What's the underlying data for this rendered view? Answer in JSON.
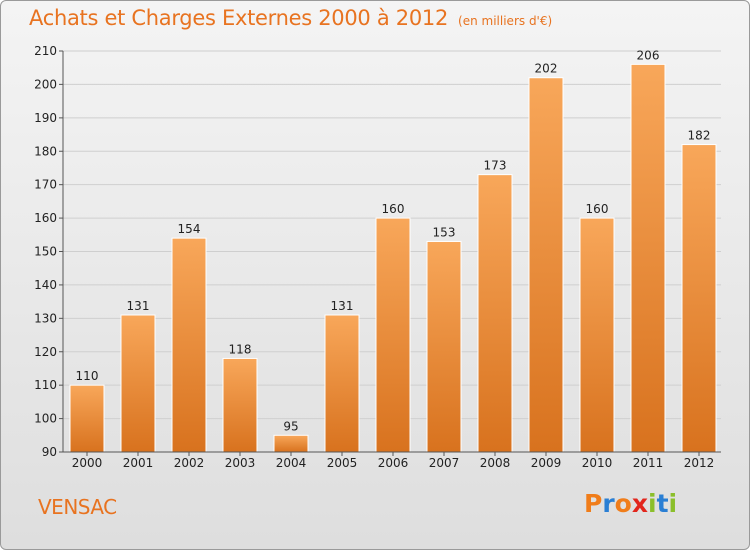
{
  "header": {
    "title": "Achats et Charges Externes 2000 à 2012",
    "subtitle": "(en milliers d'€)"
  },
  "footer": {
    "commune": "VENSAC",
    "logo_text": "Proxiti",
    "logo_letter_colors": [
      "#f07d1a",
      "#2a7fd4",
      "#f07d1a",
      "#e2261d",
      "#8bbf2b",
      "#2a7fd4",
      "#8bbf2b"
    ]
  },
  "colors": {
    "title": "#e87320",
    "bar_top": "#f8a75a",
    "bar_bottom": "#d8721e",
    "axis": "#555555"
  },
  "chart_data": {
    "type": "bar",
    "categories": [
      "2000",
      "2001",
      "2002",
      "2003",
      "2004",
      "2005",
      "2006",
      "2007",
      "2008",
      "2009",
      "2010",
      "2011",
      "2012"
    ],
    "values": [
      110,
      131,
      154,
      118,
      95,
      131,
      160,
      153,
      173,
      202,
      160,
      206,
      182
    ],
    "ylim": [
      90,
      210
    ],
    "yticks": [
      90,
      100,
      110,
      120,
      130,
      140,
      150,
      160,
      170,
      180,
      190,
      200,
      210
    ],
    "grid": true,
    "xlabel": "",
    "ylabel": ""
  }
}
